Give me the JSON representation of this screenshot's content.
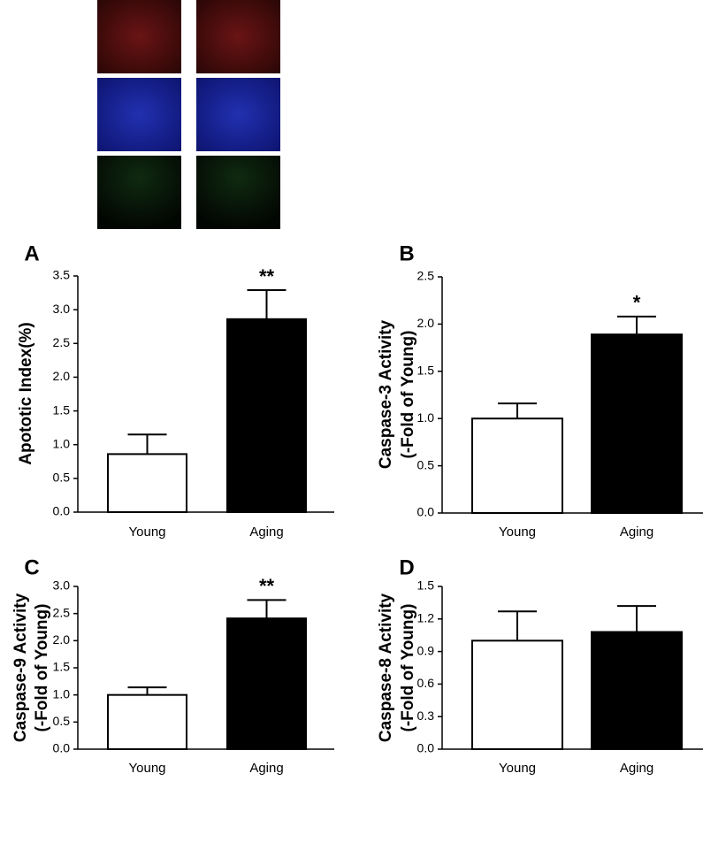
{
  "chart_data": [
    {
      "type": "bar",
      "panel": "A",
      "ylabel": [
        "Apototic Index(%)"
      ],
      "categories": [
        "Young",
        "Aging"
      ],
      "values": [
        0.86,
        2.86
      ],
      "errors": [
        0.29,
        0.43
      ],
      "colors": [
        "#ffffff",
        "#000000"
      ],
      "significance": [
        null,
        "**"
      ],
      "ylim": [
        0,
        3.5
      ],
      "yticks": [
        {
          "value": 0,
          "label": "0.0"
        },
        0.5,
        {
          "value": 1,
          "label": "1.0"
        },
        1.5,
        {
          "value": 2,
          "label": "2.0"
        },
        2.5,
        {
          "value": 3,
          "label": "3.0"
        },
        3.5
      ]
    },
    {
      "type": "bar",
      "panel": "B",
      "ylabel": [
        "Caspase-3 Activity",
        "(-Fold of Young)"
      ],
      "categories": [
        "Young",
        "Aging"
      ],
      "values": [
        1.0,
        1.89
      ],
      "errors": [
        0.16,
        0.19
      ],
      "colors": [
        "#ffffff",
        "#000000"
      ],
      "significance": [
        null,
        "*"
      ],
      "ylim": [
        0,
        2.5
      ],
      "yticks": [
        {
          "value": 0,
          "label": "0.0"
        },
        0.5,
        {
          "value": 1,
          "label": "1.0"
        },
        1.5,
        {
          "value": 2,
          "label": "2.0"
        },
        2.5
      ]
    },
    {
      "type": "bar",
      "panel": "C",
      "ylabel": [
        "Caspase-9 Activity",
        "(-Fold of Young)"
      ],
      "categories": [
        "Young",
        "Aging"
      ],
      "values": [
        1.0,
        2.41
      ],
      "errors": [
        0.14,
        0.34
      ],
      "colors": [
        "#ffffff",
        "#000000"
      ],
      "significance": [
        null,
        "**"
      ],
      "ylim": [
        0,
        3.0
      ],
      "yticks": [
        {
          "value": 0,
          "label": "0.0"
        },
        0.5,
        {
          "value": 1,
          "label": "1.0"
        },
        1.5,
        {
          "value": 2,
          "label": "2.0"
        },
        2.5,
        {
          "value": 3,
          "label": "3.0"
        }
      ]
    },
    {
      "type": "bar",
      "panel": "D",
      "ylabel": [
        "Caspase-8 Activity",
        "(-Fold of Young)"
      ],
      "categories": [
        "Young",
        "Aging"
      ],
      "values": [
        1.0,
        1.08
      ],
      "errors": [
        0.27,
        0.24
      ],
      "colors": [
        "#ffffff",
        "#000000"
      ],
      "significance": [
        null,
        null
      ],
      "ylim": [
        0,
        1.5
      ],
      "yticks": [
        {
          "value": 0,
          "label": "0.0"
        },
        0.3,
        0.6,
        0.9,
        1.2,
        1.5
      ]
    }
  ]
}
